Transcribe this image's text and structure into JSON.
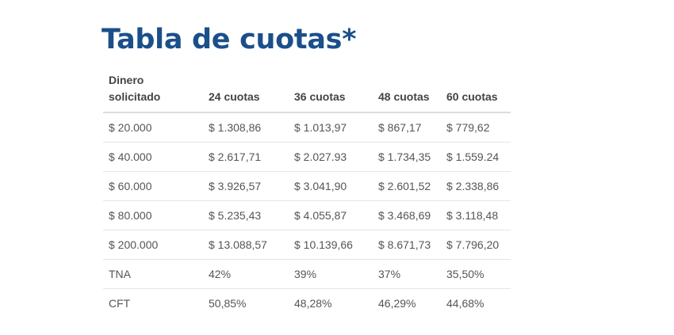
{
  "title": "Tabla de cuotas*",
  "table": {
    "headers": {
      "amount_line1": "Dinero",
      "amount_line2": "solicitado",
      "c24": "24 cuotas",
      "c36": "36 cuotas",
      "c48": "48 cuotas",
      "c60": "60 cuotas"
    },
    "rows": [
      [
        "$ 20.000",
        "$ 1.308,86",
        "$ 1.013,97",
        "$ 867,17",
        "$ 779,62"
      ],
      [
        "$ 40.000",
        "$ 2.617,71",
        "$ 2.027.93",
        "$ 1.734,35",
        "$ 1.559.24"
      ],
      [
        "$ 60.000",
        "$ 3.926,57",
        "$ 3.041,90",
        "$ 2.601,52",
        "$ 2.338,86"
      ],
      [
        "$ 80.000",
        "$ 5.235,43",
        "$ 4.055,87",
        "$ 3.468,69",
        "$ 3.118,48"
      ],
      [
        "$ 200.000",
        "$ 13.088,57",
        "$ 10.139,66",
        "$ 8.671,73",
        "$ 7.796,20"
      ],
      [
        "TNA",
        "42%",
        "39%",
        "37%",
        "35,50%"
      ],
      [
        "CFT",
        "50,85%",
        "48,28%",
        "46,29%",
        "44,68%"
      ]
    ]
  }
}
